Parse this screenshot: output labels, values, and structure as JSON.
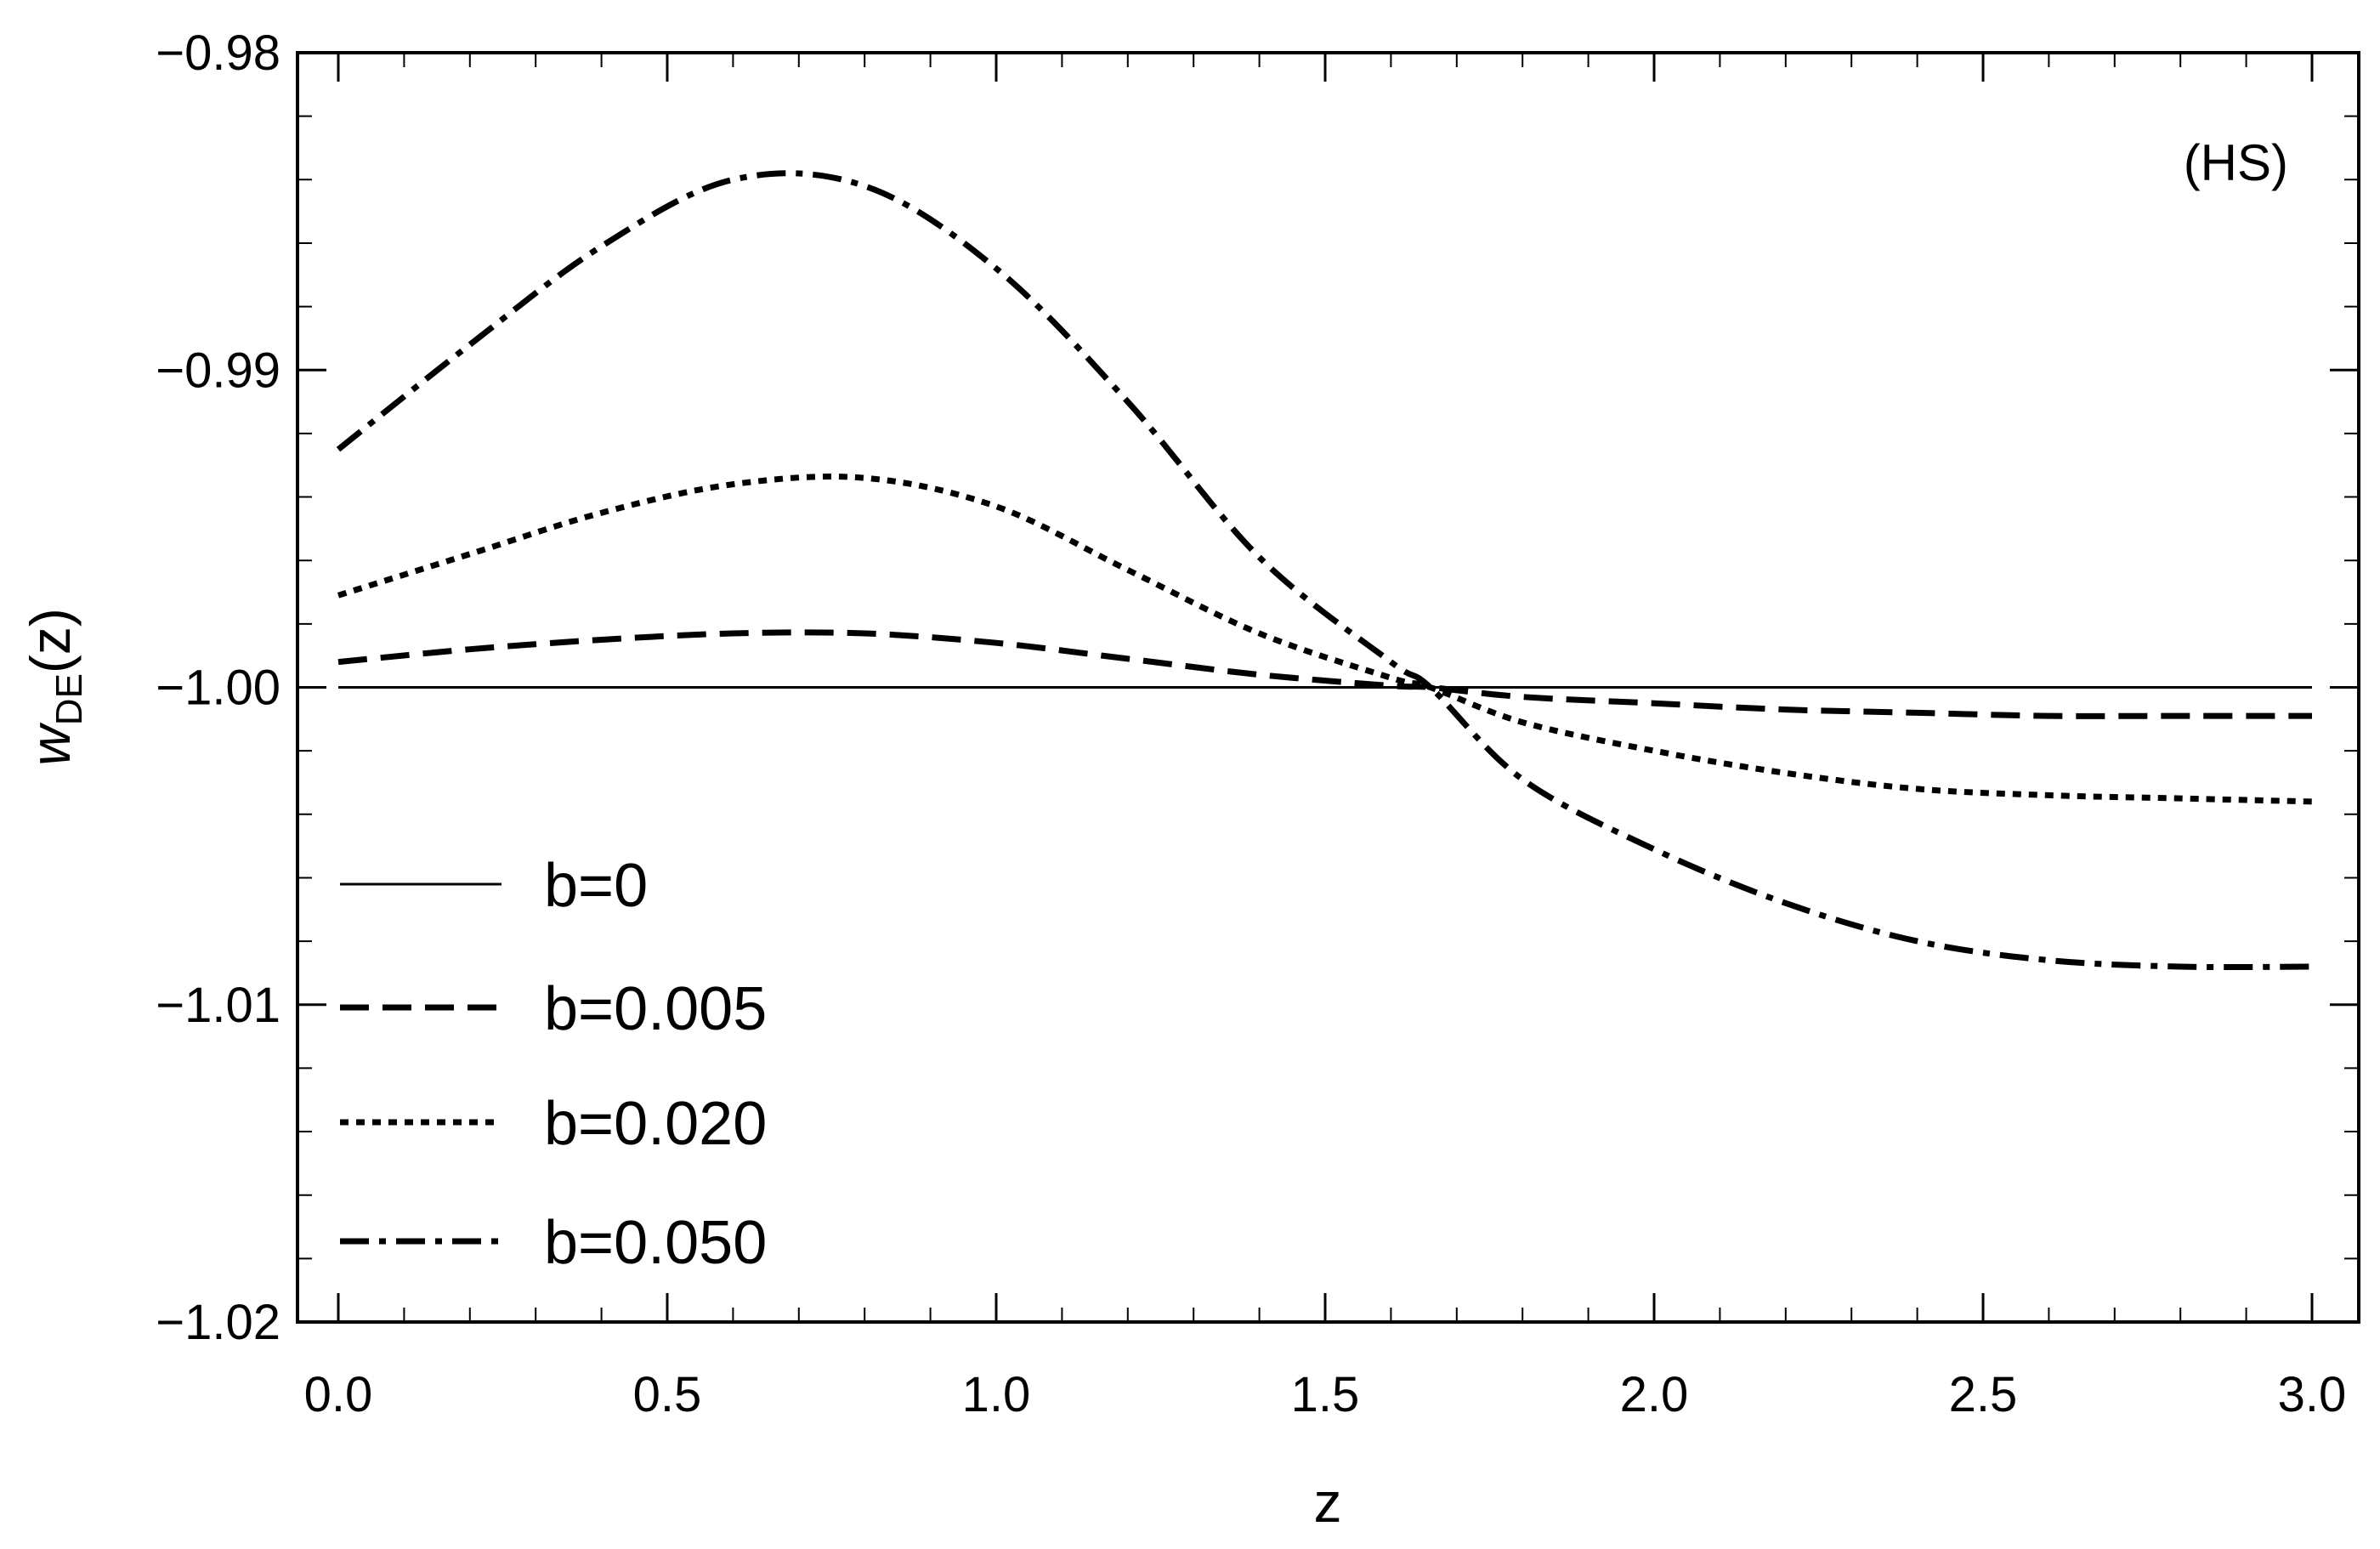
{
  "chart_data": {
    "type": "line",
    "title": "",
    "annotation": "(HS)",
    "xlabel": "z",
    "ylabel_main": "w",
    "ylabel_sub": "DE",
    "ylabel_suffix": "(z)",
    "xlim": [
      0.0,
      3.0
    ],
    "ylim": [
      -1.02,
      -0.98
    ],
    "grid": false,
    "legend_position": "lower-left",
    "x_ticks": [
      "0.0",
      "0.5",
      "1.0",
      "1.5",
      "2.0",
      "2.5",
      "3.0"
    ],
    "y_ticks": [
      "−0.98",
      "−0.99",
      "−1.00",
      "−1.01",
      "−1.02"
    ],
    "x": [
      0.0,
      0.2,
      0.4,
      0.6,
      0.8,
      1.0,
      1.2,
      1.4,
      1.6,
      1.66,
      1.8,
      2.0,
      2.2,
      2.4,
      2.6,
      2.8,
      3.0
    ],
    "series": [
      {
        "name": "b=0",
        "dash": "solid",
        "values": [
          -1.0,
          -1.0,
          -1.0,
          -1.0,
          -1.0,
          -1.0,
          -1.0,
          -1.0,
          -1.0,
          -1.0,
          -1.0,
          -1.0,
          -1.0,
          -1.0,
          -1.0,
          -1.0,
          -1.0
        ]
      },
      {
        "name": "b=0.005",
        "dash": "dashed",
        "values": [
          -0.9992,
          -0.9988,
          -0.9985,
          -0.9983,
          -0.9983,
          -0.9986,
          -0.9991,
          -0.9996,
          -0.99995,
          -1.0,
          -1.0003,
          -1.0005,
          -1.0007,
          -1.0008,
          -1.0009,
          -1.0009,
          -1.0009
        ]
      },
      {
        "name": "b=0.020",
        "dash": "dotted",
        "values": [
          -0.9971,
          -0.9958,
          -0.9945,
          -0.9936,
          -0.9934,
          -0.9943,
          -0.9963,
          -0.9983,
          -0.9997,
          -1.0,
          -1.0011,
          -1.002,
          -1.0027,
          -1.0032,
          -1.0034,
          -1.0035,
          -1.0036
        ]
      },
      {
        "name": "b=0.050",
        "dash": "dashdot",
        "values": [
          -0.9925,
          -0.9892,
          -0.9861,
          -0.984,
          -0.9842,
          -0.9868,
          -0.991,
          -0.9959,
          -0.9992,
          -1.0,
          -1.0029,
          -1.0051,
          -1.0068,
          -1.008,
          -1.0086,
          -1.0088,
          -1.0088
        ]
      }
    ]
  }
}
